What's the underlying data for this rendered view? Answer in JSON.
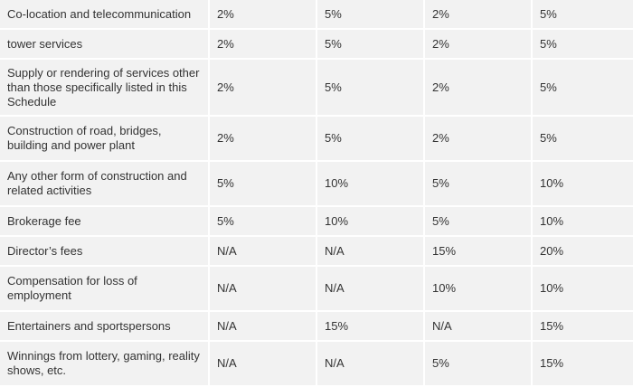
{
  "rates_table": {
    "rows": [
      {
        "label": "Co-location and telecommunication",
        "values": [
          "2%",
          "5%",
          "2%",
          "5%"
        ]
      },
      {
        "label": "tower services",
        "values": [
          "2%",
          "5%",
          "2%",
          "5%"
        ]
      },
      {
        "label": "Supply or rendering of services other than those specifically listed in this Schedule",
        "values": [
          "2%",
          "5%",
          "2%",
          "5%"
        ]
      },
      {
        "label": "Construction of road, bridges, building and power plant",
        "values": [
          "2%",
          "5%",
          "2%",
          "5%"
        ]
      },
      {
        "label": "Any other form of construction and related activities",
        "values": [
          "5%",
          "10%",
          "5%",
          "10%"
        ]
      },
      {
        "label": "Brokerage fee",
        "values": [
          "5%",
          "10%",
          "5%",
          "10%"
        ]
      },
      {
        "label": "Director’s fees",
        "values": [
          "N/A",
          "N/A",
          "15%",
          "20%"
        ]
      },
      {
        "label": "Compensation for loss of employment",
        "values": [
          "N/A",
          "N/A",
          "10%",
          "10%"
        ]
      },
      {
        "label": "Entertainers and sportspersons",
        "values": [
          "N/A",
          "15%",
          "N/A",
          "15%"
        ]
      },
      {
        "label": "Winnings from lottery, gaming, reality shows, etc.",
        "values": [
          "N/A",
          "N/A",
          "5%",
          "15%"
        ]
      }
    ]
  }
}
